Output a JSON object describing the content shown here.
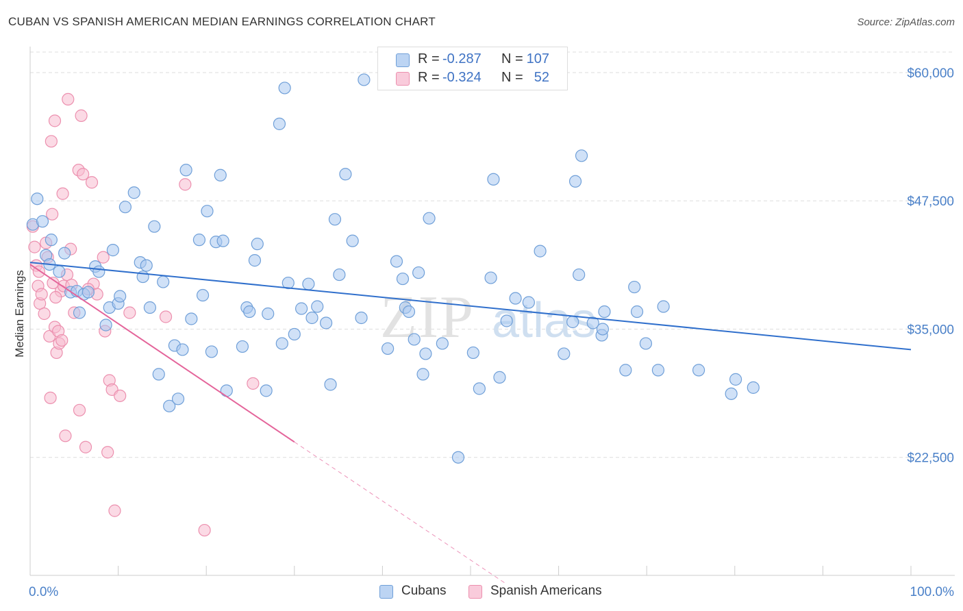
{
  "header": {
    "title": "CUBAN VS SPANISH AMERICAN MEDIAN EARNINGS CORRELATION CHART",
    "source": "Source: ZipAtlas.com"
  },
  "watermark": "ZIPatlas",
  "colors": {
    "cubans_fill": "#a9c8f0",
    "cubans_stroke": "#6f9fd8",
    "cubans_line": "#2f6fcc",
    "spanish_fill": "#f7bcd0",
    "spanish_stroke": "#ec8fae",
    "spanish_line": "#e4649a",
    "tick_text": "#4a80c8",
    "grid": "#dddddd"
  },
  "legend_top": {
    "rows": [
      {
        "r_label": "R =",
        "r_value": "-0.287",
        "n_label": "N =",
        "n_value": "107"
      },
      {
        "r_label": "R =",
        "r_value": "-0.324",
        "n_label": "N =",
        "n_value": "52"
      }
    ]
  },
  "legend_bottom": {
    "items": [
      "Cubans",
      "Spanish Americans"
    ]
  },
  "chart_data": {
    "type": "scatter",
    "title": "CUBAN VS SPANISH AMERICAN MEDIAN EARNINGS CORRELATION CHART",
    "xlabel": "",
    "ylabel": "Median Earnings",
    "xlim": [
      0,
      100
    ],
    "ylim": [
      11000,
      62000
    ],
    "x_tick_labels": [
      "0.0%",
      "100.0%"
    ],
    "y_ticks": [
      22500,
      35000,
      47500,
      60000
    ],
    "y_tick_labels": [
      "$22,500",
      "$35,000",
      "$47,500",
      "$60,000"
    ],
    "grid": true,
    "legend_placement": "top-center",
    "series": [
      {
        "name": "Cubans",
        "points": [
          [
            0.3,
            45200
          ],
          [
            0.8,
            47700
          ],
          [
            1.4,
            45500
          ],
          [
            1.8,
            42200
          ],
          [
            2.4,
            43700
          ],
          [
            2.2,
            41300
          ],
          [
            3.3,
            40600
          ],
          [
            3.9,
            42400
          ],
          [
            4.6,
            38600
          ],
          [
            5.3,
            38700
          ],
          [
            5.6,
            36600
          ],
          [
            6.1,
            38400
          ],
          [
            6.6,
            38600
          ],
          [
            7.4,
            41100
          ],
          [
            7.8,
            40600
          ],
          [
            8.6,
            35400
          ],
          [
            9.0,
            37100
          ],
          [
            9.4,
            42700
          ],
          [
            10.0,
            37500
          ],
          [
            10.2,
            38200
          ],
          [
            10.8,
            46900
          ],
          [
            11.8,
            48300
          ],
          [
            12.5,
            41500
          ],
          [
            12.8,
            40100
          ],
          [
            13.2,
            41200
          ],
          [
            13.6,
            37100
          ],
          [
            14.1,
            45000
          ],
          [
            14.6,
            30600
          ],
          [
            15.1,
            39600
          ],
          [
            15.8,
            27500
          ],
          [
            16.4,
            33400
          ],
          [
            16.8,
            28200
          ],
          [
            17.3,
            33000
          ],
          [
            17.7,
            50500
          ],
          [
            18.3,
            36000
          ],
          [
            19.2,
            43700
          ],
          [
            19.6,
            38300
          ],
          [
            20.1,
            46500
          ],
          [
            20.6,
            32800
          ],
          [
            21.1,
            43500
          ],
          [
            21.6,
            50000
          ],
          [
            21.9,
            43600
          ],
          [
            22.3,
            29000
          ],
          [
            24.1,
            33300
          ],
          [
            24.6,
            37100
          ],
          [
            24.9,
            36700
          ],
          [
            25.5,
            41700
          ],
          [
            25.8,
            43300
          ],
          [
            26.8,
            29000
          ],
          [
            27.0,
            36500
          ],
          [
            28.3,
            55000
          ],
          [
            28.6,
            33600
          ],
          [
            28.9,
            58500
          ],
          [
            29.3,
            39500
          ],
          [
            30.0,
            34500
          ],
          [
            30.8,
            37000
          ],
          [
            31.6,
            39400
          ],
          [
            32.0,
            36100
          ],
          [
            32.6,
            37200
          ],
          [
            33.6,
            35600
          ],
          [
            34.1,
            29600
          ],
          [
            34.6,
            45700
          ],
          [
            35.1,
            40300
          ],
          [
            35.8,
            50100
          ],
          [
            36.6,
            43600
          ],
          [
            37.6,
            36100
          ],
          [
            37.9,
            59300
          ],
          [
            40.6,
            33100
          ],
          [
            41.6,
            41600
          ],
          [
            42.3,
            39900
          ],
          [
            42.6,
            37100
          ],
          [
            43.0,
            36700
          ],
          [
            43.6,
            34000
          ],
          [
            44.1,
            40500
          ],
          [
            44.6,
            30600
          ],
          [
            44.9,
            32600
          ],
          [
            45.3,
            45800
          ],
          [
            46.8,
            33600
          ],
          [
            48.6,
            22500
          ],
          [
            50.3,
            32700
          ],
          [
            51.0,
            29200
          ],
          [
            52.3,
            40000
          ],
          [
            52.6,
            49600
          ],
          [
            53.3,
            30300
          ],
          [
            54.1,
            35800
          ],
          [
            55.1,
            38000
          ],
          [
            56.6,
            37600
          ],
          [
            57.9,
            42600
          ],
          [
            60.6,
            32600
          ],
          [
            61.6,
            35700
          ],
          [
            61.9,
            49400
          ],
          [
            62.6,
            51900
          ],
          [
            62.3,
            40300
          ],
          [
            64.9,
            34400
          ],
          [
            65.2,
            36700
          ],
          [
            67.6,
            31000
          ],
          [
            68.6,
            39100
          ],
          [
            68.9,
            36700
          ],
          [
            69.9,
            33600
          ],
          [
            71.3,
            31000
          ],
          [
            71.9,
            37200
          ],
          [
            75.9,
            31000
          ],
          [
            79.6,
            28700
          ],
          [
            80.1,
            30100
          ],
          [
            82.1,
            29300
          ],
          [
            63.9,
            35600
          ],
          [
            65.0,
            35000
          ]
        ],
        "trend": {
          "x": [
            0,
            100
          ],
          "y": [
            41500,
            33000
          ]
        }
      },
      {
        "name": "Spanish Americans",
        "points": [
          [
            0.3,
            45000
          ],
          [
            0.5,
            43000
          ],
          [
            0.7,
            41200
          ],
          [
            0.9,
            39200
          ],
          [
            1.1,
            37500
          ],
          [
            1.3,
            38400
          ],
          [
            1.6,
            36500
          ],
          [
            1.8,
            43400
          ],
          [
            2.0,
            42000
          ],
          [
            2.2,
            34300
          ],
          [
            2.3,
            28300
          ],
          [
            2.4,
            53300
          ],
          [
            2.5,
            46200
          ],
          [
            2.6,
            39500
          ],
          [
            2.8,
            35200
          ],
          [
            3.0,
            32700
          ],
          [
            3.2,
            34800
          ],
          [
            3.3,
            33600
          ],
          [
            3.5,
            38700
          ],
          [
            3.7,
            48200
          ],
          [
            3.8,
            39200
          ],
          [
            4.2,
            40300
          ],
          [
            4.6,
            42800
          ],
          [
            4.7,
            39300
          ],
          [
            5.0,
            36600
          ],
          [
            5.5,
            50500
          ],
          [
            5.6,
            27100
          ],
          [
            5.8,
            55800
          ],
          [
            6.0,
            50100
          ],
          [
            6.3,
            23500
          ],
          [
            7.0,
            49300
          ],
          [
            7.2,
            39400
          ],
          [
            7.6,
            38400
          ],
          [
            8.3,
            42000
          ],
          [
            8.5,
            34800
          ],
          [
            8.8,
            23000
          ],
          [
            9.0,
            30000
          ],
          [
            9.3,
            29100
          ],
          [
            9.6,
            17300
          ],
          [
            10.2,
            28500
          ],
          [
            11.3,
            36600
          ],
          [
            15.4,
            36200
          ],
          [
            17.6,
            49100
          ],
          [
            19.8,
            15400
          ],
          [
            25.3,
            29700
          ],
          [
            4.0,
            24600
          ],
          [
            4.3,
            57400
          ],
          [
            2.8,
            55300
          ],
          [
            3.6,
            33900
          ],
          [
            6.6,
            38900
          ],
          [
            1.0,
            40600
          ],
          [
            2.9,
            38100
          ]
        ],
        "trend": {
          "x": [
            0,
            30
          ],
          "y": [
            41300,
            24000
          ]
        },
        "trend_dashed_extension": {
          "x": [
            30,
            54
          ],
          "y": [
            24000,
            10200
          ]
        }
      }
    ]
  }
}
